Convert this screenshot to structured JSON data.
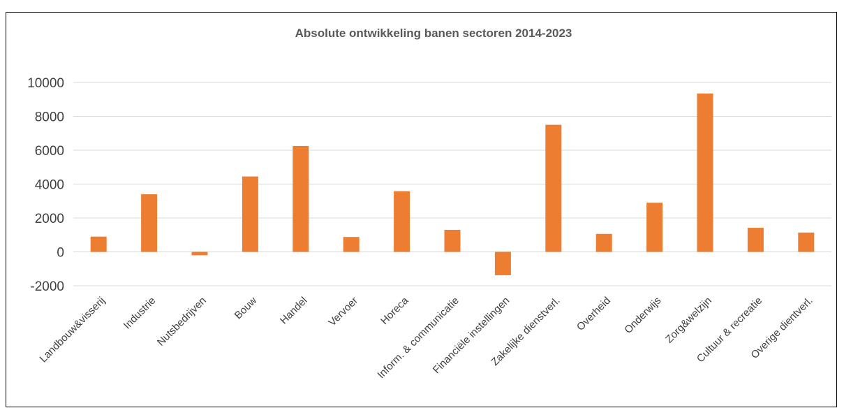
{
  "chart_data": {
    "type": "bar",
    "title": "Absolute ontwikkeling banen sectoren 2014-2023",
    "xlabel": "",
    "ylabel": "",
    "ylim": [
      -2000,
      10000
    ],
    "yticks": [
      10000,
      8000,
      6000,
      4000,
      2000,
      0,
      -2000
    ],
    "grid": true,
    "legend": "none",
    "categories": [
      "Landbouw&visserij",
      "Industrie",
      "Nutsbedrijven",
      "Bouw",
      "Handel",
      "Vervoer",
      "Horeca",
      "Inform. & communicatie",
      "Financiële instellingen",
      "Zakelijke dienstverl.",
      "Overheid",
      "Onderwijs",
      "Zorg&welzijn",
      "Cultuur & recreatie",
      "Overige dientverl."
    ],
    "values": [
      900,
      3400,
      -200,
      4450,
      6250,
      880,
      3580,
      1300,
      -1380,
      7500,
      1060,
      2900,
      9350,
      1420,
      1140
    ],
    "colors": {
      "bar": "#ED7D31",
      "grid": "#D9D9D9",
      "text": "#404040"
    }
  }
}
